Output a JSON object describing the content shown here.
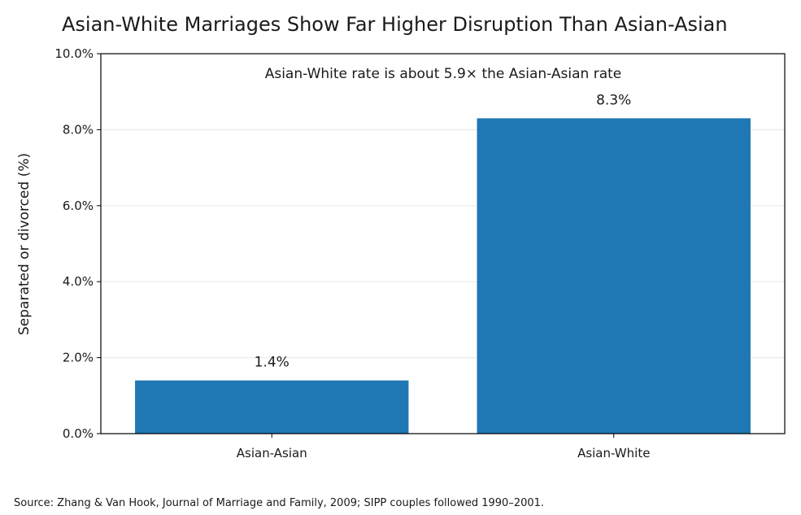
{
  "chart_data": {
    "type": "bar",
    "title": "Asian-White Marriages Show Far Higher Disruption Than Asian-Asian",
    "xlabel": "",
    "ylabel": "Separated or divorced (%)",
    "categories": [
      "Asian-Asian",
      "Asian-White"
    ],
    "values": [
      1.4,
      8.3
    ],
    "value_labels": [
      "1.4%",
      "8.3%"
    ],
    "ylim": [
      0,
      10
    ],
    "yticks": [
      0,
      2,
      4,
      6,
      8,
      10
    ],
    "ytick_labels": [
      "0.0%",
      "2.0%",
      "4.0%",
      "6.0%",
      "8.0%",
      "10.0%"
    ],
    "annotation": "Asian-White rate is about 5.9× the Asian-Asian rate",
    "source": "Source: Zhang & Van Hook, Journal of Marriage and Family, 2009; SIPP couples followed 1990–2001.",
    "bar_color": "#1f77b4",
    "grid": true,
    "grid_color": "#ebebeb",
    "legend": "none"
  }
}
